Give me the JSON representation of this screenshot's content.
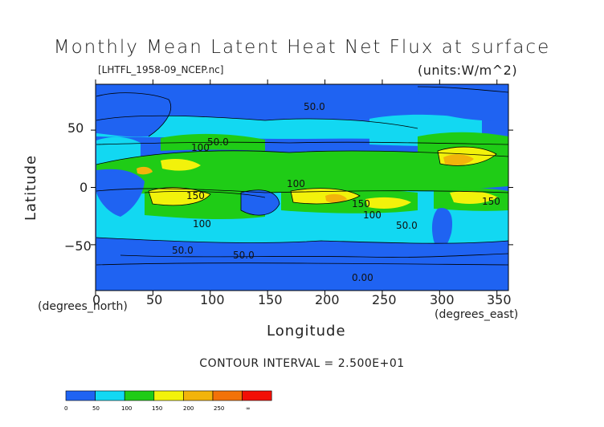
{
  "title": "Monthly Mean Latent Heat Net Flux at surface",
  "filename": "[LHTFL_1958-09_NCEP.nc]",
  "units": "(units:W/m^2)",
  "axes": {
    "ylabel": "Latitude",
    "xlabel": "Longitude",
    "y_unit_note": "(degrees_north)",
    "x_unit_note": "(degrees_east)",
    "yticks": [
      "50",
      "0",
      "−50"
    ],
    "xticks": [
      "0",
      "50",
      "100",
      "150",
      "200",
      "250",
      "300",
      "350"
    ]
  },
  "contour_interval": "CONTOUR INTERVAL = 2.500E+01",
  "contour_labels": [
    "50.0",
    "100",
    "50.0",
    "150",
    "100",
    "150",
    "100",
    "150",
    "100",
    "50.0",
    "50.0",
    "50.0",
    "0.00"
  ],
  "colorbar": {
    "ticks": [
      "0",
      "50",
      "100",
      "150",
      "200",
      "250",
      "∞"
    ],
    "colors": [
      "#1f63f2",
      "#12d8f2",
      "#1fcc16",
      "#f2f20b",
      "#f2b40b",
      "#f27208",
      "#f21006"
    ]
  },
  "chart_data": {
    "type": "heatmap",
    "title": "Monthly Mean Latent Heat Net Flux at surface",
    "xlabel": "Longitude",
    "ylabel": "Latitude",
    "xlim": [
      0,
      360
    ],
    "ylim": [
      -90,
      90
    ],
    "levels": [
      0,
      25,
      50,
      75,
      100,
      125,
      150,
      175,
      200,
      225,
      250,
      275,
      300
    ],
    "colors": [
      "#1f63f2",
      "#12d8f2",
      "#1fcc16",
      "#f2f20b",
      "#f2b40b",
      "#f27208",
      "#f21006"
    ]
  }
}
